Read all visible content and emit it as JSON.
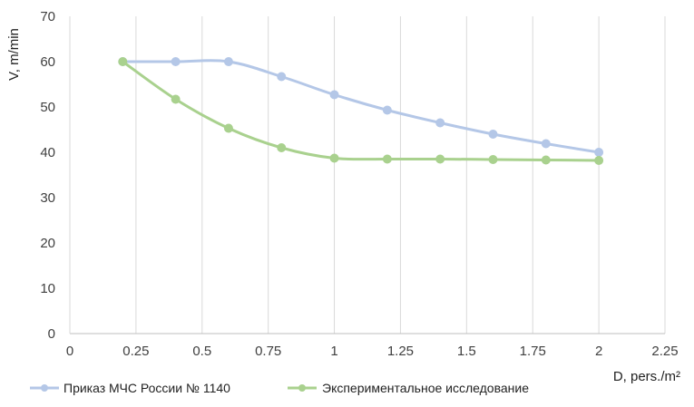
{
  "chart_data": {
    "type": "line",
    "xlabel": "D, pers./m²",
    "ylabel": "V, m/min",
    "xlim": [
      0,
      2.25
    ],
    "ylim": [
      0,
      70
    ],
    "xticks": [
      0,
      0.25,
      0.5,
      0.75,
      1,
      1.25,
      1.5,
      1.75,
      2,
      2.25
    ],
    "xtick_labels": [
      "0",
      "0.25",
      "0.5",
      "0.75",
      "1",
      "1.25",
      "1.5",
      "1.75",
      "2",
      "2.25"
    ],
    "yticks": [
      0,
      10,
      20,
      30,
      40,
      50,
      60,
      70
    ],
    "ytick_labels": [
      "0",
      "10",
      "20",
      "30",
      "40",
      "50",
      "60",
      "70"
    ],
    "grid": "vertical",
    "legend_position": "bottom",
    "series": [
      {
        "name": "Приказ МЧС России № 1140",
        "color": "#b4c7e7",
        "x": [
          0.2,
          0.4,
          0.6,
          0.8,
          1.0,
          1.2,
          1.4,
          1.6,
          1.8,
          2.0
        ],
        "y": [
          60,
          60,
          60,
          56.7,
          52.7,
          49.3,
          46.5,
          44.0,
          41.9,
          40.0
        ]
      },
      {
        "name": "Экспериментальное исследование",
        "color": "#a9d18e",
        "x": [
          0.2,
          0.4,
          0.6,
          0.8,
          1.0,
          1.2,
          1.4,
          1.6,
          1.8,
          2.0
        ],
        "y": [
          60,
          51.7,
          45.3,
          41.0,
          38.7,
          38.5,
          38.5,
          38.4,
          38.3,
          38.2
        ]
      }
    ]
  }
}
